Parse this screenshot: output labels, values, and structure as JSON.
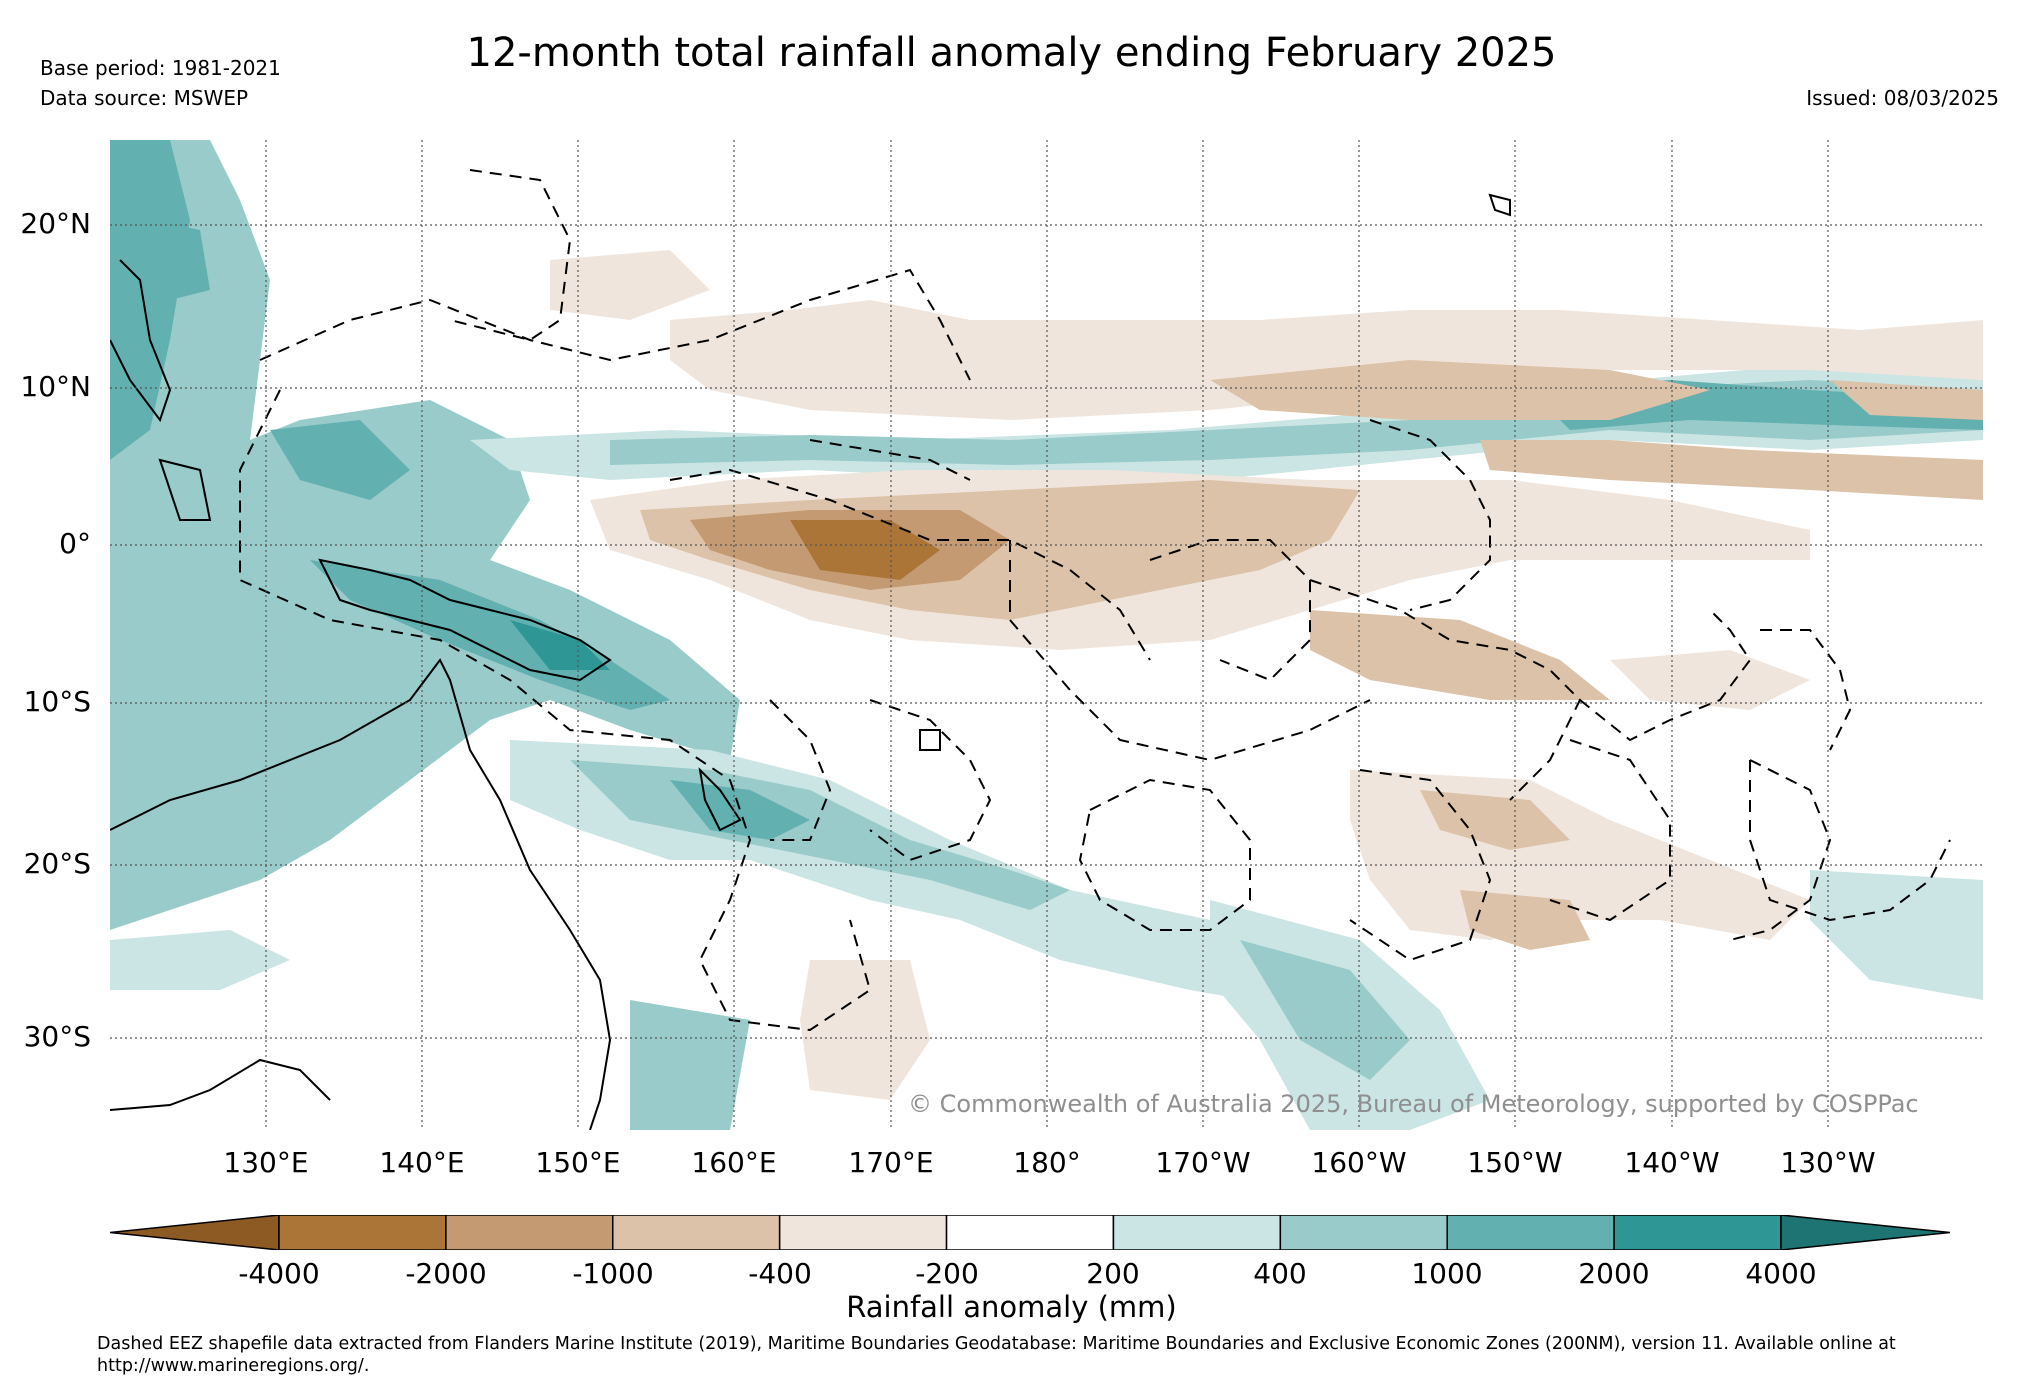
{
  "title": "12-month total rainfall anomaly ending February 2025",
  "base_period": "Base period: 1981-2021",
  "data_source": "Data source: MSWEP",
  "issued": "Issued: 08/03/2025",
  "copyright": "© Commonwealth of Australia 2025, Bureau of Meteorology, supported by COSPPac",
  "latitude_labels": [
    "20°N",
    "10°N",
    "0°",
    "10°S",
    "20°S",
    "30°S"
  ],
  "longitude_labels": [
    "130°E",
    "140°E",
    "150°E",
    "160°E",
    "170°E",
    "180°",
    "170°W",
    "160°W",
    "150°W",
    "140°W",
    "130°W"
  ],
  "colorbar": {
    "label": "Rainfall anomaly (mm)",
    "ticks": [
      "-4000",
      "-2000",
      "-1000",
      "-400",
      "-200",
      "200",
      "400",
      "1000",
      "2000",
      "4000"
    ],
    "colors": [
      "#8d5a24",
      "#ab7538",
      "#c49a72",
      "#dcc2a8",
      "#f0e5dc",
      "#ffffff",
      "#cbe5e4",
      "#98cbca",
      "#62b1b0",
      "#2e9796",
      "#1d7473"
    ]
  },
  "footnote": "Dashed EEZ shapefile data extracted from Flanders Marine Institute (2019), Maritime Boundaries Geodatabase: Maritime Boundaries and Exclusive Economic Zones (200NM), version 11. Available online at http://www.marineregions.org/."
}
